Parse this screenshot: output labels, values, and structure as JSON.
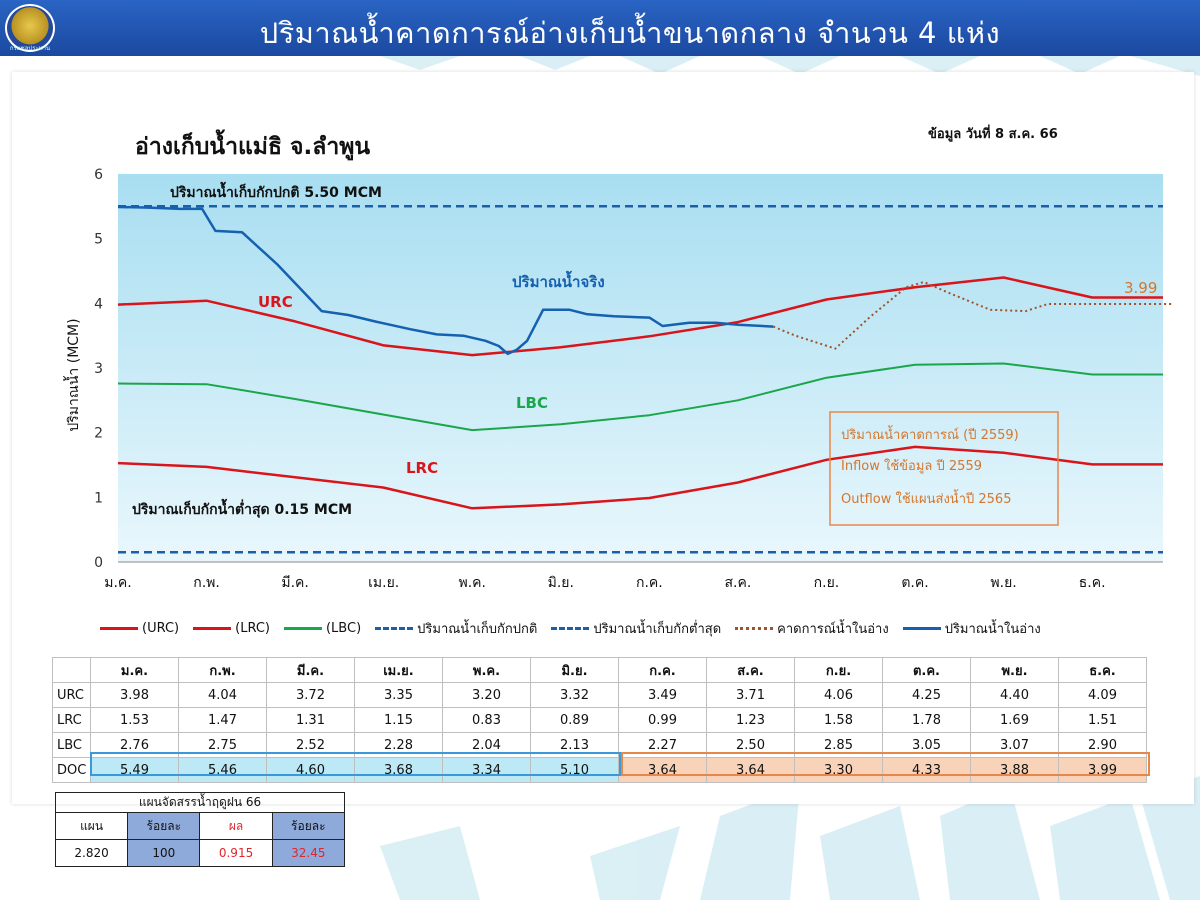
{
  "header": {
    "title": "ปริมาณน้ำคาดการณ์อ่างเก็บน้ำขนาดกลาง จำนวน 4 แห่ง",
    "logo_text": "กรมชลประทาน"
  },
  "chart_title": "อ่างเก็บน้ำแม่ธิ จ.ลำพูน",
  "data_date": "ข้อมูล วันที่  8 ส.ค. 66",
  "colors": {
    "urc": "#d9141b",
    "lrc": "#d9141b",
    "lbc": "#1aa64a",
    "normal_storage": "#1a5fa8",
    "min_storage": "#1a5fa8",
    "forecast": "#a0522d",
    "actual": "#1560b0",
    "plot_bg_top": "#a8def1",
    "plot_bg_bottom": "#e9f7fc"
  },
  "chart_data": {
    "type": "line",
    "categories": [
      "ม.ค.",
      "ก.พ.",
      "มี.ค.",
      "เม.ย.",
      "พ.ค.",
      "มิ.ย.",
      "ก.ค.",
      "ส.ค.",
      "ก.ย.",
      "ต.ค.",
      "พ.ย.",
      "ธ.ค."
    ],
    "ylabel": "ปริมาณน้ำ (MCM)",
    "ylim": [
      0,
      6
    ],
    "yticks": [
      "0",
      "1",
      "2",
      "3",
      "4",
      "5",
      "6"
    ],
    "grid": false,
    "legend_position": "bottom",
    "series": [
      {
        "key": "urc",
        "name": "(URC)",
        "values": [
          3.98,
          4.04,
          3.72,
          3.35,
          3.2,
          3.32,
          3.49,
          3.71,
          4.06,
          4.25,
          4.4,
          4.09
        ]
      },
      {
        "key": "lrc",
        "name": "(LRC)",
        "values": [
          1.53,
          1.47,
          1.31,
          1.15,
          0.83,
          0.89,
          0.99,
          1.23,
          1.58,
          1.78,
          1.69,
          1.51
        ]
      },
      {
        "key": "lbc",
        "name": "(LBC)",
        "values": [
          2.76,
          2.75,
          2.52,
          2.28,
          2.04,
          2.13,
          2.27,
          2.5,
          2.85,
          3.05,
          3.07,
          2.9
        ]
      },
      {
        "key": "normal_storage",
        "name": "ปริมาณน้ำเก็บกักปกติ",
        "constant": 5.5
      },
      {
        "key": "min_storage",
        "name": "ปริมาณน้ำเก็บกักต่ำสุด",
        "constant": 0.15
      },
      {
        "key": "forecast",
        "name": "คาดการณ์น้ำในอ่าง",
        "points": [
          [
            7.4,
            3.64
          ],
          [
            7.65,
            3.5
          ],
          [
            8.1,
            3.3
          ],
          [
            8.5,
            3.8
          ],
          [
            8.9,
            4.25
          ],
          [
            9.1,
            4.33
          ],
          [
            9.4,
            4.15
          ],
          [
            9.85,
            3.9
          ],
          [
            10.25,
            3.88
          ],
          [
            10.5,
            3.99
          ],
          [
            11.0,
            3.99
          ],
          [
            11.9,
            3.99
          ]
        ]
      },
      {
        "key": "actual",
        "name": "ปริมาณน้ำในอ่าง",
        "points": [
          [
            0,
            5.49
          ],
          [
            0.35,
            5.48
          ],
          [
            0.7,
            5.46
          ],
          [
            0.95,
            5.46
          ],
          [
            1.1,
            5.12
          ],
          [
            1.4,
            5.1
          ],
          [
            1.8,
            4.6
          ],
          [
            2.3,
            3.88
          ],
          [
            2.6,
            3.82
          ],
          [
            2.9,
            3.72
          ],
          [
            3.3,
            3.6
          ],
          [
            3.6,
            3.52
          ],
          [
            3.9,
            3.5
          ],
          [
            4.15,
            3.42
          ],
          [
            4.3,
            3.34
          ],
          [
            4.4,
            3.22
          ],
          [
            4.5,
            3.28
          ],
          [
            4.62,
            3.42
          ],
          [
            4.8,
            3.9
          ],
          [
            5.1,
            3.9
          ],
          [
            5.3,
            3.83
          ],
          [
            5.6,
            3.8
          ],
          [
            6.0,
            3.78
          ],
          [
            6.15,
            3.65
          ],
          [
            6.45,
            3.7
          ],
          [
            6.75,
            3.7
          ],
          [
            7.0,
            3.67
          ],
          [
            7.4,
            3.64
          ]
        ]
      }
    ],
    "annotations": {
      "normal_label": "ปริมาณน้ำเก็บกักปกติ 5.50 MCM",
      "min_label": "ปริมาณเก็บกักน้ำต่ำสุด 0.15 MCM",
      "urc_label": "URC",
      "lrc_label": "LRC",
      "lbc_label": "LBC",
      "actual_label": "ปริมาณน้ำจริง",
      "end_value": "3.99",
      "box_lines": [
        "ปริมาณน้ำคาดการณ์ (ปี 2559)",
        "Inflow ใช้ข้อมูล ปี 2559",
        "Outflow ใช้แผนส่งน้ำปี 2565"
      ]
    }
  },
  "legend": [
    {
      "label": "(URC)",
      "style": "solid",
      "color": "#d9141b"
    },
    {
      "label": "(LRC)",
      "style": "solid",
      "color": "#d9141b"
    },
    {
      "label": "(LBC)",
      "style": "solid",
      "color": "#1aa64a"
    },
    {
      "label": "ปริมาณน้ำเก็บกักปกติ",
      "style": "dashed",
      "color": "#1a5fa8"
    },
    {
      "label": "ปริมาณน้ำเก็บกักต่ำสุด",
      "style": "dashed",
      "color": "#1a5fa8"
    },
    {
      "label": "คาดการณ์น้ำในอ่าง",
      "style": "dotted",
      "color": "#a0522d"
    },
    {
      "label": "ปริมาณน้ำในอ่าง",
      "style": "solid",
      "color": "#1560b0"
    }
  ],
  "table": {
    "months": [
      "ม.ค.",
      "ก.พ.",
      "มี.ค.",
      "เม.ย.",
      "พ.ค.",
      "มิ.ย.",
      "ก.ค.",
      "ส.ค.",
      "ก.ย.",
      "ต.ค.",
      "พ.ย.",
      "ธ.ค."
    ],
    "rows": [
      {
        "label": "URC",
        "values": [
          "3.98",
          "4.04",
          "3.72",
          "3.35",
          "3.20",
          "3.32",
          "3.49",
          "3.71",
          "4.06",
          "4.25",
          "4.40",
          "4.09"
        ]
      },
      {
        "label": "LRC",
        "values": [
          "1.53",
          "1.47",
          "1.31",
          "1.15",
          "0.83",
          "0.89",
          "0.99",
          "1.23",
          "1.58",
          "1.78",
          "1.69",
          "1.51"
        ]
      },
      {
        "label": "LBC",
        "values": [
          "2.76",
          "2.75",
          "2.52",
          "2.28",
          "2.04",
          "2.13",
          "2.27",
          "2.50",
          "2.85",
          "3.05",
          "3.07",
          "2.90"
        ]
      },
      {
        "label": "DOC",
        "values": [
          "5.49",
          "5.46",
          "4.60",
          "3.68",
          "3.34",
          "5.10",
          "3.64",
          "3.64",
          "3.30",
          "4.33",
          "3.88",
          "3.99"
        ]
      }
    ]
  },
  "plan": {
    "title": "แผนจัดสรรน้ำฤดูฝน 66",
    "headers": [
      "แผน",
      "ร้อยละ",
      "ผล",
      "ร้อยละ"
    ],
    "values": [
      "2.820",
      "100",
      "0.915",
      "32.45"
    ]
  }
}
